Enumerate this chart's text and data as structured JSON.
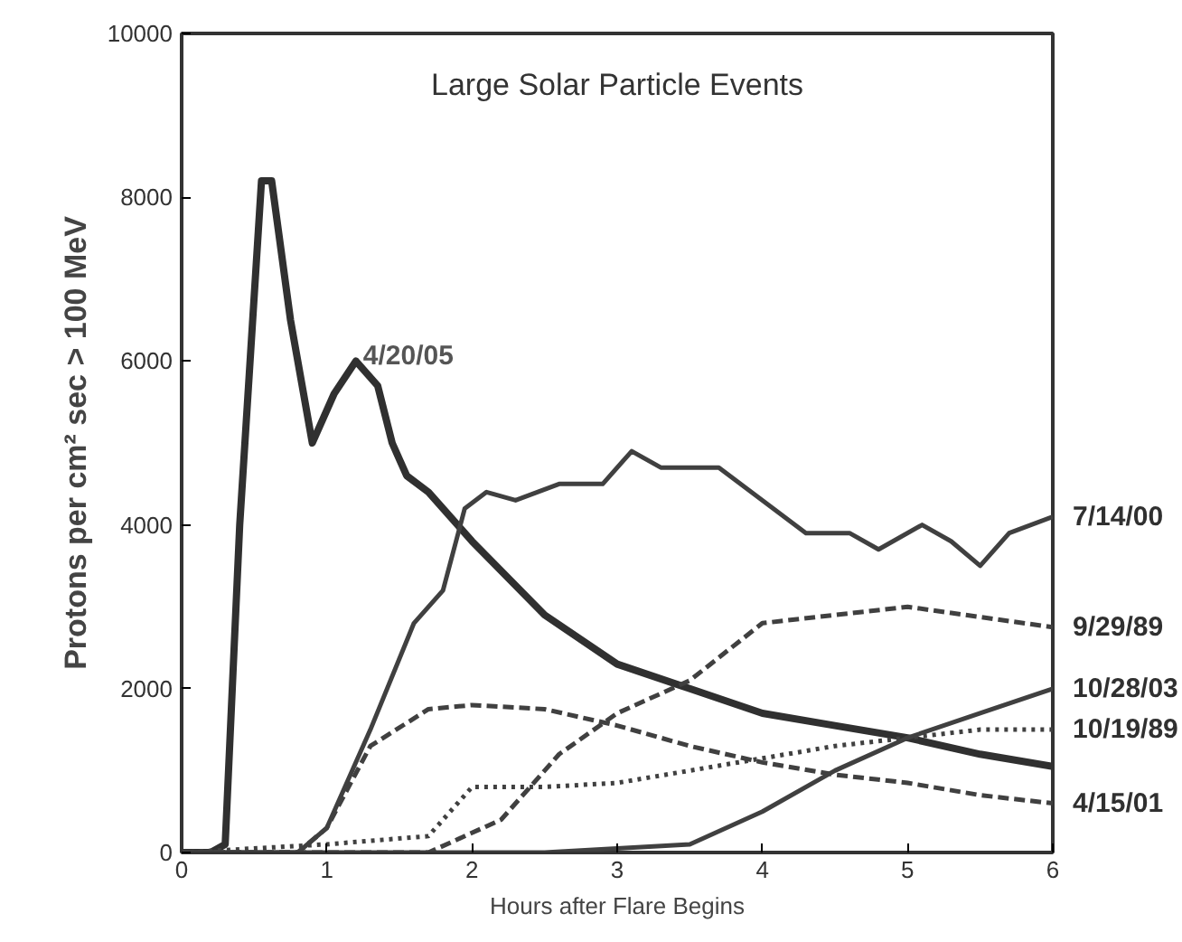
{
  "chart_data": {
    "type": "line",
    "title": "Large Solar Particle Events",
    "xlabel": "Hours after Flare Begins",
    "ylabel": "Protons per cm² sec > 100 MeV",
    "xlim": [
      0,
      6
    ],
    "ylim": [
      0,
      10000
    ],
    "xticks": [
      0,
      1,
      2,
      3,
      4,
      5,
      6
    ],
    "yticks": [
      0,
      2000,
      4000,
      6000,
      8000,
      10000
    ],
    "grid": false,
    "marker": "none",
    "annotations": [
      {
        "text": "4/20/05",
        "x": 1.25,
        "y": 6000
      }
    ],
    "series": [
      {
        "color": "#303030",
        "line_style": "solid",
        "x": [
          0,
          0.2,
          0.3,
          0.4,
          0.55,
          0.62,
          0.75,
          0.9,
          1.05,
          1.2,
          1.35,
          1.45,
          1.55,
          1.7,
          2.0,
          2.5,
          3.0,
          3.5,
          4.0,
          4.5,
          5.0,
          5.5,
          6.0
        ],
        "values": [
          0,
          0,
          100,
          4000,
          8200,
          8200,
          6500,
          5000,
          5600,
          6000,
          5700,
          5000,
          4600,
          4400,
          3800,
          2900,
          2300,
          2000,
          1700,
          1550,
          1400,
          1200,
          1050
        ]
      },
      {
        "name": "7/14/00",
        "color": "#404040",
        "line_style": "solid",
        "x": [
          0,
          0.8,
          1.0,
          1.3,
          1.6,
          1.8,
          1.95,
          2.1,
          2.3,
          2.6,
          2.9,
          3.1,
          3.3,
          3.7,
          4.0,
          4.3,
          4.6,
          4.8,
          5.1,
          5.3,
          5.5,
          5.7,
          6.0
        ],
        "values": [
          0,
          0,
          300,
          1500,
          2800,
          3200,
          4200,
          4400,
          4300,
          4500,
          4500,
          4900,
          4700,
          4700,
          4300,
          3900,
          3900,
          3700,
          4000,
          3800,
          3500,
          3900,
          4100
        ]
      },
      {
        "name": "9/29/89",
        "color": "#404040",
        "line_style": "dashed",
        "x": [
          0,
          1.7,
          2.2,
          2.6,
          3.0,
          3.5,
          4.0,
          4.5,
          5.0,
          5.4,
          6.0
        ],
        "values": [
          0,
          0,
          400,
          1200,
          1700,
          2100,
          2800,
          2900,
          3000,
          2900,
          2750
        ]
      },
      {
        "name": "10/28/03",
        "color": "#404040",
        "line_style": "solid",
        "x": [
          0,
          2.5,
          3.5,
          4.0,
          4.5,
          5.0,
          5.5,
          6.0
        ],
        "values": [
          0,
          0,
          100,
          500,
          1000,
          1400,
          1700,
          2000
        ]
      },
      {
        "name": "10/19/89",
        "color": "#404040",
        "line_style": "dotted",
        "x": [
          0,
          1.0,
          1.7,
          2.0,
          2.5,
          3.0,
          3.5,
          4.0,
          4.5,
          5.0,
          5.5,
          6.0
        ],
        "values": [
          0,
          100,
          200,
          800,
          800,
          850,
          1000,
          1150,
          1300,
          1400,
          1500,
          1500
        ]
      },
      {
        "name": "4/15/01",
        "color": "#404040",
        "line_style": "dashed",
        "x": [
          0,
          0.8,
          1.0,
          1.3,
          1.7,
          2.0,
          2.5,
          3.0,
          3.5,
          4.0,
          4.5,
          5.0,
          5.5,
          6.0
        ],
        "values": [
          0,
          0,
          300,
          1300,
          1750,
          1800,
          1750,
          1550,
          1300,
          1100,
          950,
          850,
          700,
          600
        ]
      }
    ]
  }
}
